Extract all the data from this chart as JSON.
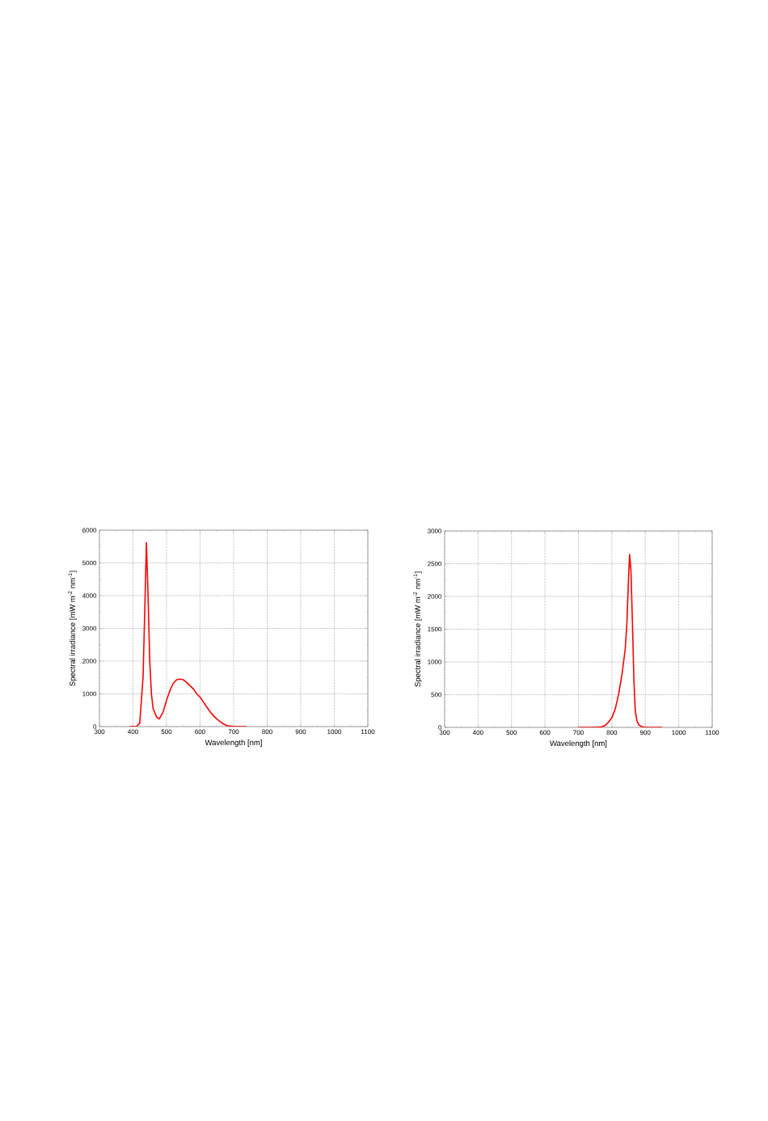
{
  "chart_data": [
    {
      "type": "line",
      "xlabel": "Wavelength [nm]",
      "ylabel": "Spectral irradiance [mW m$^{-2}$ nm$^{-1}$]",
      "x": [
        390,
        410,
        420,
        430,
        435,
        440,
        445,
        450,
        455,
        460,
        470,
        478,
        490,
        500,
        510,
        520,
        530,
        540,
        550,
        560,
        570,
        580,
        590,
        600,
        610,
        620,
        630,
        640,
        650,
        660,
        670,
        680,
        700,
        738
      ],
      "values": [
        0,
        0,
        100,
        1500,
        3500,
        5620,
        4000,
        2000,
        1000,
        550,
        300,
        230,
        450,
        800,
        1100,
        1320,
        1430,
        1450,
        1430,
        1350,
        1250,
        1150,
        1000,
        900,
        750,
        600,
        450,
        330,
        230,
        150,
        80,
        30,
        0,
        0
      ],
      "color": "#ff0000",
      "xlim": [
        300,
        1100
      ],
      "ylim": [
        0,
        6000
      ],
      "xticks": [
        300,
        400,
        500,
        600,
        700,
        800,
        900,
        1000,
        1100
      ],
      "yticks": [
        0,
        1000,
        2000,
        3000,
        4000,
        5000,
        6000
      ],
      "grid": true
    },
    {
      "type": "line",
      "xlabel": "Wavelength [nm]",
      "ylabel": "Spectral irradiance [mW m$^{-2}$ nm$^{-1}$]",
      "x": [
        700,
        750,
        770,
        780,
        790,
        800,
        810,
        820,
        830,
        840,
        845,
        850,
        853,
        857,
        862,
        866,
        870,
        875,
        880,
        890,
        900,
        950
      ],
      "values": [
        0,
        0,
        10,
        30,
        80,
        150,
        280,
        500,
        800,
        1200,
        1600,
        2300,
        2640,
        2400,
        1500,
        700,
        250,
        100,
        40,
        10,
        0,
        0
      ],
      "color": "#ff0000",
      "xlim": [
        300,
        1100
      ],
      "ylim": [
        0,
        3000
      ],
      "xticks": [
        300,
        400,
        500,
        600,
        700,
        800,
        900,
        1000,
        1100
      ],
      "yticks": [
        0,
        500,
        1000,
        1500,
        2000,
        2500,
        3000
      ],
      "grid": true
    }
  ]
}
